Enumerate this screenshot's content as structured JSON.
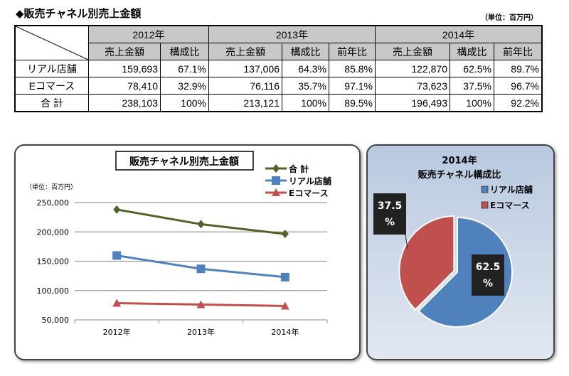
{
  "header": {
    "title": "◆販売チャネル別売上金額",
    "unit": "（単位：百万円）"
  },
  "table": {
    "years": [
      "2012年",
      "2013年",
      "2014年"
    ],
    "subheaders": [
      "売上金額",
      "構成比",
      "売上金額",
      "構成比",
      "前年比",
      "売上金額",
      "構成比",
      "前年比"
    ],
    "rows": [
      {
        "label": "リアル店舗",
        "cells": [
          "159,693",
          "67.1%",
          "137,006",
          "64.3%",
          "85.8%",
          "122,870",
          "62.5%",
          "89.7%"
        ]
      },
      {
        "label": "Eコマース",
        "cells": [
          "78,410",
          "32.9%",
          "76,116",
          "35.7%",
          "97.1%",
          "73,623",
          "37.5%",
          "96.7%"
        ]
      },
      {
        "label": "合 計",
        "cells": [
          "238,103",
          "100%",
          "213,121",
          "100%",
          "89.5%",
          "196,493",
          "100%",
          "92.2%"
        ]
      }
    ]
  },
  "chart_data": [
    {
      "type": "line",
      "title": "販売チャネル別売上金額",
      "ylabel": "（単位：百万円）",
      "categories": [
        "2012年",
        "2013年",
        "2014年"
      ],
      "ylim": [
        50000,
        250000
      ],
      "yticks": [
        "250,000",
        "200,000",
        "150,000",
        "100,000",
        "50,000"
      ],
      "grid": true,
      "legend": "top-right",
      "series": [
        {
          "name": "合 計",
          "values": [
            238103,
            213121,
            196493
          ],
          "color": "#4f6228",
          "marker": "diamond"
        },
        {
          "name": "リアル店舗",
          "values": [
            159693,
            137006,
            122870
          ],
          "color": "#4f81bd",
          "marker": "square"
        },
        {
          "name": "Eコマース",
          "values": [
            78410,
            76116,
            73623
          ],
          "color": "#c0504d",
          "marker": "triangle"
        }
      ]
    },
    {
      "type": "pie",
      "title": [
        "2014年",
        "販売チャネル構成比"
      ],
      "legend": "top-right",
      "slices": [
        {
          "name": "リアル店舗",
          "value": 62.5,
          "label": "62.5 %",
          "color": "#4f81bd"
        },
        {
          "name": "Eコマース",
          "value": 37.5,
          "label": "37.5 %",
          "color": "#c0504d"
        }
      ]
    }
  ]
}
